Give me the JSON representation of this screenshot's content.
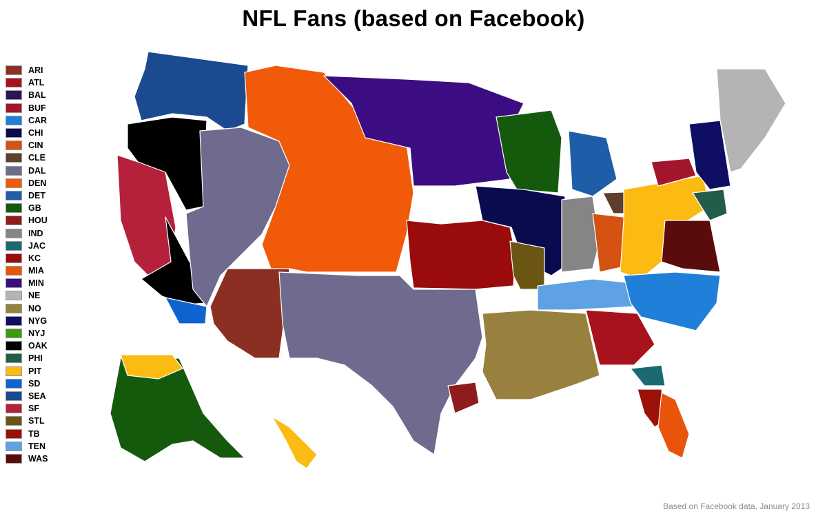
{
  "title": "NFL Fans (based on Facebook)",
  "credit": "Based on Facebook data, January 2013",
  "legend": [
    {
      "team": "ARI",
      "color": "#8b2f22"
    },
    {
      "team": "ATL",
      "color": "#a8121d"
    },
    {
      "team": "BAL",
      "color": "#2c1458"
    },
    {
      "team": "BUF",
      "color": "#a2162d"
    },
    {
      "team": "CAR",
      "color": "#1f7fd9"
    },
    {
      "team": "CHI",
      "color": "#0a0a4e"
    },
    {
      "team": "CIN",
      "color": "#d65212"
    },
    {
      "team": "CLE",
      "color": "#5d3f2c"
    },
    {
      "team": "DAL",
      "color": "#6f6b8f"
    },
    {
      "team": "DEN",
      "color": "#f05a08"
    },
    {
      "team": "DET",
      "color": "#1e5da8"
    },
    {
      "team": "GB",
      "color": "#155a0c"
    },
    {
      "team": "HOU",
      "color": "#8f1c1c"
    },
    {
      "team": "IND",
      "color": "#858585"
    },
    {
      "team": "JAC",
      "color": "#1c6a71"
    },
    {
      "team": "KC",
      "color": "#9a0b0b"
    },
    {
      "team": "MIA",
      "color": "#e8540a"
    },
    {
      "team": "MIN",
      "color": "#3c0c82"
    },
    {
      "team": "NE",
      "color": "#b4b4b4"
    },
    {
      "team": "NO",
      "color": "#98803e"
    },
    {
      "team": "NYG",
      "color": "#0e0e62"
    },
    {
      "team": "NYJ",
      "color": "#3c9a12"
    },
    {
      "team": "OAK",
      "color": "#000000"
    },
    {
      "team": "PHI",
      "color": "#225d4a"
    },
    {
      "team": "PIT",
      "color": "#fbbb12"
    },
    {
      "team": "SD",
      "color": "#0d63d0"
    },
    {
      "team": "SEA",
      "color": "#1c4a90"
    },
    {
      "team": "SF",
      "color": "#b5203a"
    },
    {
      "team": "STL",
      "color": "#6b5512"
    },
    {
      "team": "TB",
      "color": "#9a1208"
    },
    {
      "team": "TEN",
      "color": "#5ea2e4"
    },
    {
      "team": "WAS",
      "color": "#5a0c0c"
    }
  ]
}
